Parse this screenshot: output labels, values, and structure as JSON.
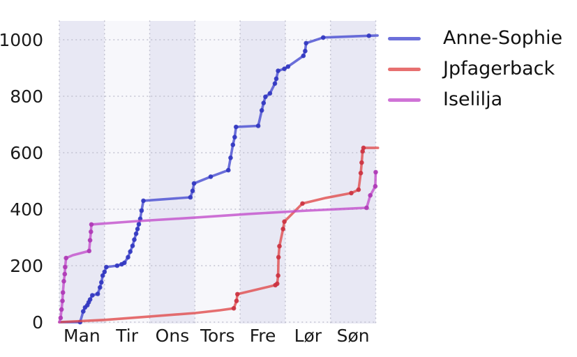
{
  "chart_data": {
    "type": "line",
    "title": "",
    "xlabel": "",
    "ylabel": "",
    "x_axis": {
      "categories": [
        "Man",
        "Tir",
        "Ons",
        "Tors",
        "Fre",
        "Lør",
        "Søn"
      ],
      "range_days": [
        0,
        7
      ]
    },
    "y_axis": {
      "ticks": [
        0,
        200,
        400,
        600,
        800,
        1000
      ],
      "range": [
        0,
        1065
      ]
    },
    "grid": "dotted",
    "legend_position": "top-right",
    "background_bands": {
      "dark": "#e8e8f4",
      "light": "#f7f7fb",
      "pattern": "alternating per weekday starting dark on Man"
    },
    "colors": {
      "grid": "#bfbfce",
      "text": "#1a1a1a"
    },
    "series": [
      {
        "name": "Anne-Sophie",
        "color": "#4348d0",
        "marker_color": "#3136c0",
        "points": [
          [
            0.0,
            0,
            0
          ],
          [
            0.46,
            0,
            1
          ],
          [
            0.53,
            38,
            1
          ],
          [
            0.57,
            52,
            1
          ],
          [
            0.62,
            60,
            1
          ],
          [
            0.65,
            70,
            1
          ],
          [
            0.68,
            80,
            1
          ],
          [
            0.73,
            95,
            1
          ],
          [
            0.85,
            100,
            1
          ],
          [
            0.9,
            123,
            1
          ],
          [
            0.93,
            141,
            1
          ],
          [
            0.96,
            165,
            1
          ],
          [
            1.0,
            178,
            1
          ],
          [
            1.04,
            195,
            1
          ],
          [
            1.28,
            200,
            1
          ],
          [
            1.38,
            205,
            1
          ],
          [
            1.44,
            210,
            1
          ],
          [
            1.52,
            230,
            1
          ],
          [
            1.57,
            250,
            1
          ],
          [
            1.62,
            270,
            1
          ],
          [
            1.66,
            292,
            1
          ],
          [
            1.7,
            313,
            1
          ],
          [
            1.73,
            330,
            1
          ],
          [
            1.76,
            347,
            1
          ],
          [
            1.79,
            366,
            1
          ],
          [
            1.82,
            395,
            1
          ],
          [
            1.86,
            430,
            1
          ],
          [
            2.9,
            442,
            1
          ],
          [
            2.95,
            465,
            1
          ],
          [
            2.98,
            491,
            1
          ],
          [
            3.35,
            515,
            1
          ],
          [
            3.74,
            538,
            1
          ],
          [
            3.79,
            582,
            1
          ],
          [
            3.84,
            628,
            1
          ],
          [
            3.88,
            655,
            1
          ],
          [
            3.91,
            691,
            1
          ],
          [
            4.4,
            695,
            1
          ],
          [
            4.48,
            750,
            1
          ],
          [
            4.52,
            776,
            1
          ],
          [
            4.56,
            798,
            1
          ],
          [
            4.66,
            810,
            1
          ],
          [
            4.77,
            845,
            1
          ],
          [
            4.8,
            862,
            1
          ],
          [
            4.84,
            890,
            1
          ],
          [
            4.98,
            897,
            1
          ],
          [
            5.06,
            905,
            1
          ],
          [
            5.4,
            943,
            1
          ],
          [
            5.44,
            960,
            1
          ],
          [
            5.46,
            988,
            1
          ],
          [
            5.84,
            1008,
            1
          ],
          [
            6.85,
            1014,
            1
          ],
          [
            7.04,
            1015,
            0
          ]
        ]
      },
      {
        "name": "Jpfagerback",
        "color": "#e04848",
        "marker_color": "#cb3240",
        "points": [
          [
            0.0,
            0,
            0
          ],
          [
            1.0,
            8,
            0
          ],
          [
            2.0,
            20,
            0
          ],
          [
            3.0,
            32,
            0
          ],
          [
            3.55,
            42,
            0
          ],
          [
            3.86,
            49,
            1
          ],
          [
            3.92,
            75,
            1
          ],
          [
            3.94,
            99,
            1
          ],
          [
            4.78,
            131,
            1
          ],
          [
            4.82,
            136,
            1
          ],
          [
            4.84,
            165,
            1
          ],
          [
            4.85,
            230,
            1
          ],
          [
            4.87,
            269,
            1
          ],
          [
            4.95,
            330,
            1
          ],
          [
            4.98,
            356,
            1
          ],
          [
            5.38,
            420,
            1
          ],
          [
            5.9,
            440,
            0
          ],
          [
            6.46,
            457,
            1
          ],
          [
            6.62,
            469,
            1
          ],
          [
            6.67,
            528,
            1
          ],
          [
            6.69,
            565,
            1
          ],
          [
            6.71,
            605,
            1
          ],
          [
            6.73,
            617,
            1
          ],
          [
            7.05,
            617,
            0
          ]
        ]
      },
      {
        "name": "Iselilja",
        "color": "#c24bca",
        "marker_color": "#ad37b5",
        "points": [
          [
            0.0,
            0,
            0
          ],
          [
            0.03,
            15,
            1
          ],
          [
            0.05,
            45,
            1
          ],
          [
            0.07,
            75,
            1
          ],
          [
            0.08,
            105,
            1
          ],
          [
            0.1,
            145,
            1
          ],
          [
            0.12,
            170,
            1
          ],
          [
            0.13,
            195,
            1
          ],
          [
            0.15,
            227,
            1
          ],
          [
            0.3,
            237,
            0
          ],
          [
            0.66,
            252,
            1
          ],
          [
            0.68,
            290,
            1
          ],
          [
            0.7,
            320,
            1
          ],
          [
            0.71,
            346,
            1
          ],
          [
            1.75,
            358,
            0
          ],
          [
            3.0,
            370,
            0
          ],
          [
            4.17,
            383,
            0
          ],
          [
            5.5,
            395,
            0
          ],
          [
            6.8,
            405,
            1
          ],
          [
            6.88,
            449,
            1
          ],
          [
            6.99,
            481,
            1
          ],
          [
            7.0,
            531,
            1
          ]
        ]
      }
    ]
  }
}
